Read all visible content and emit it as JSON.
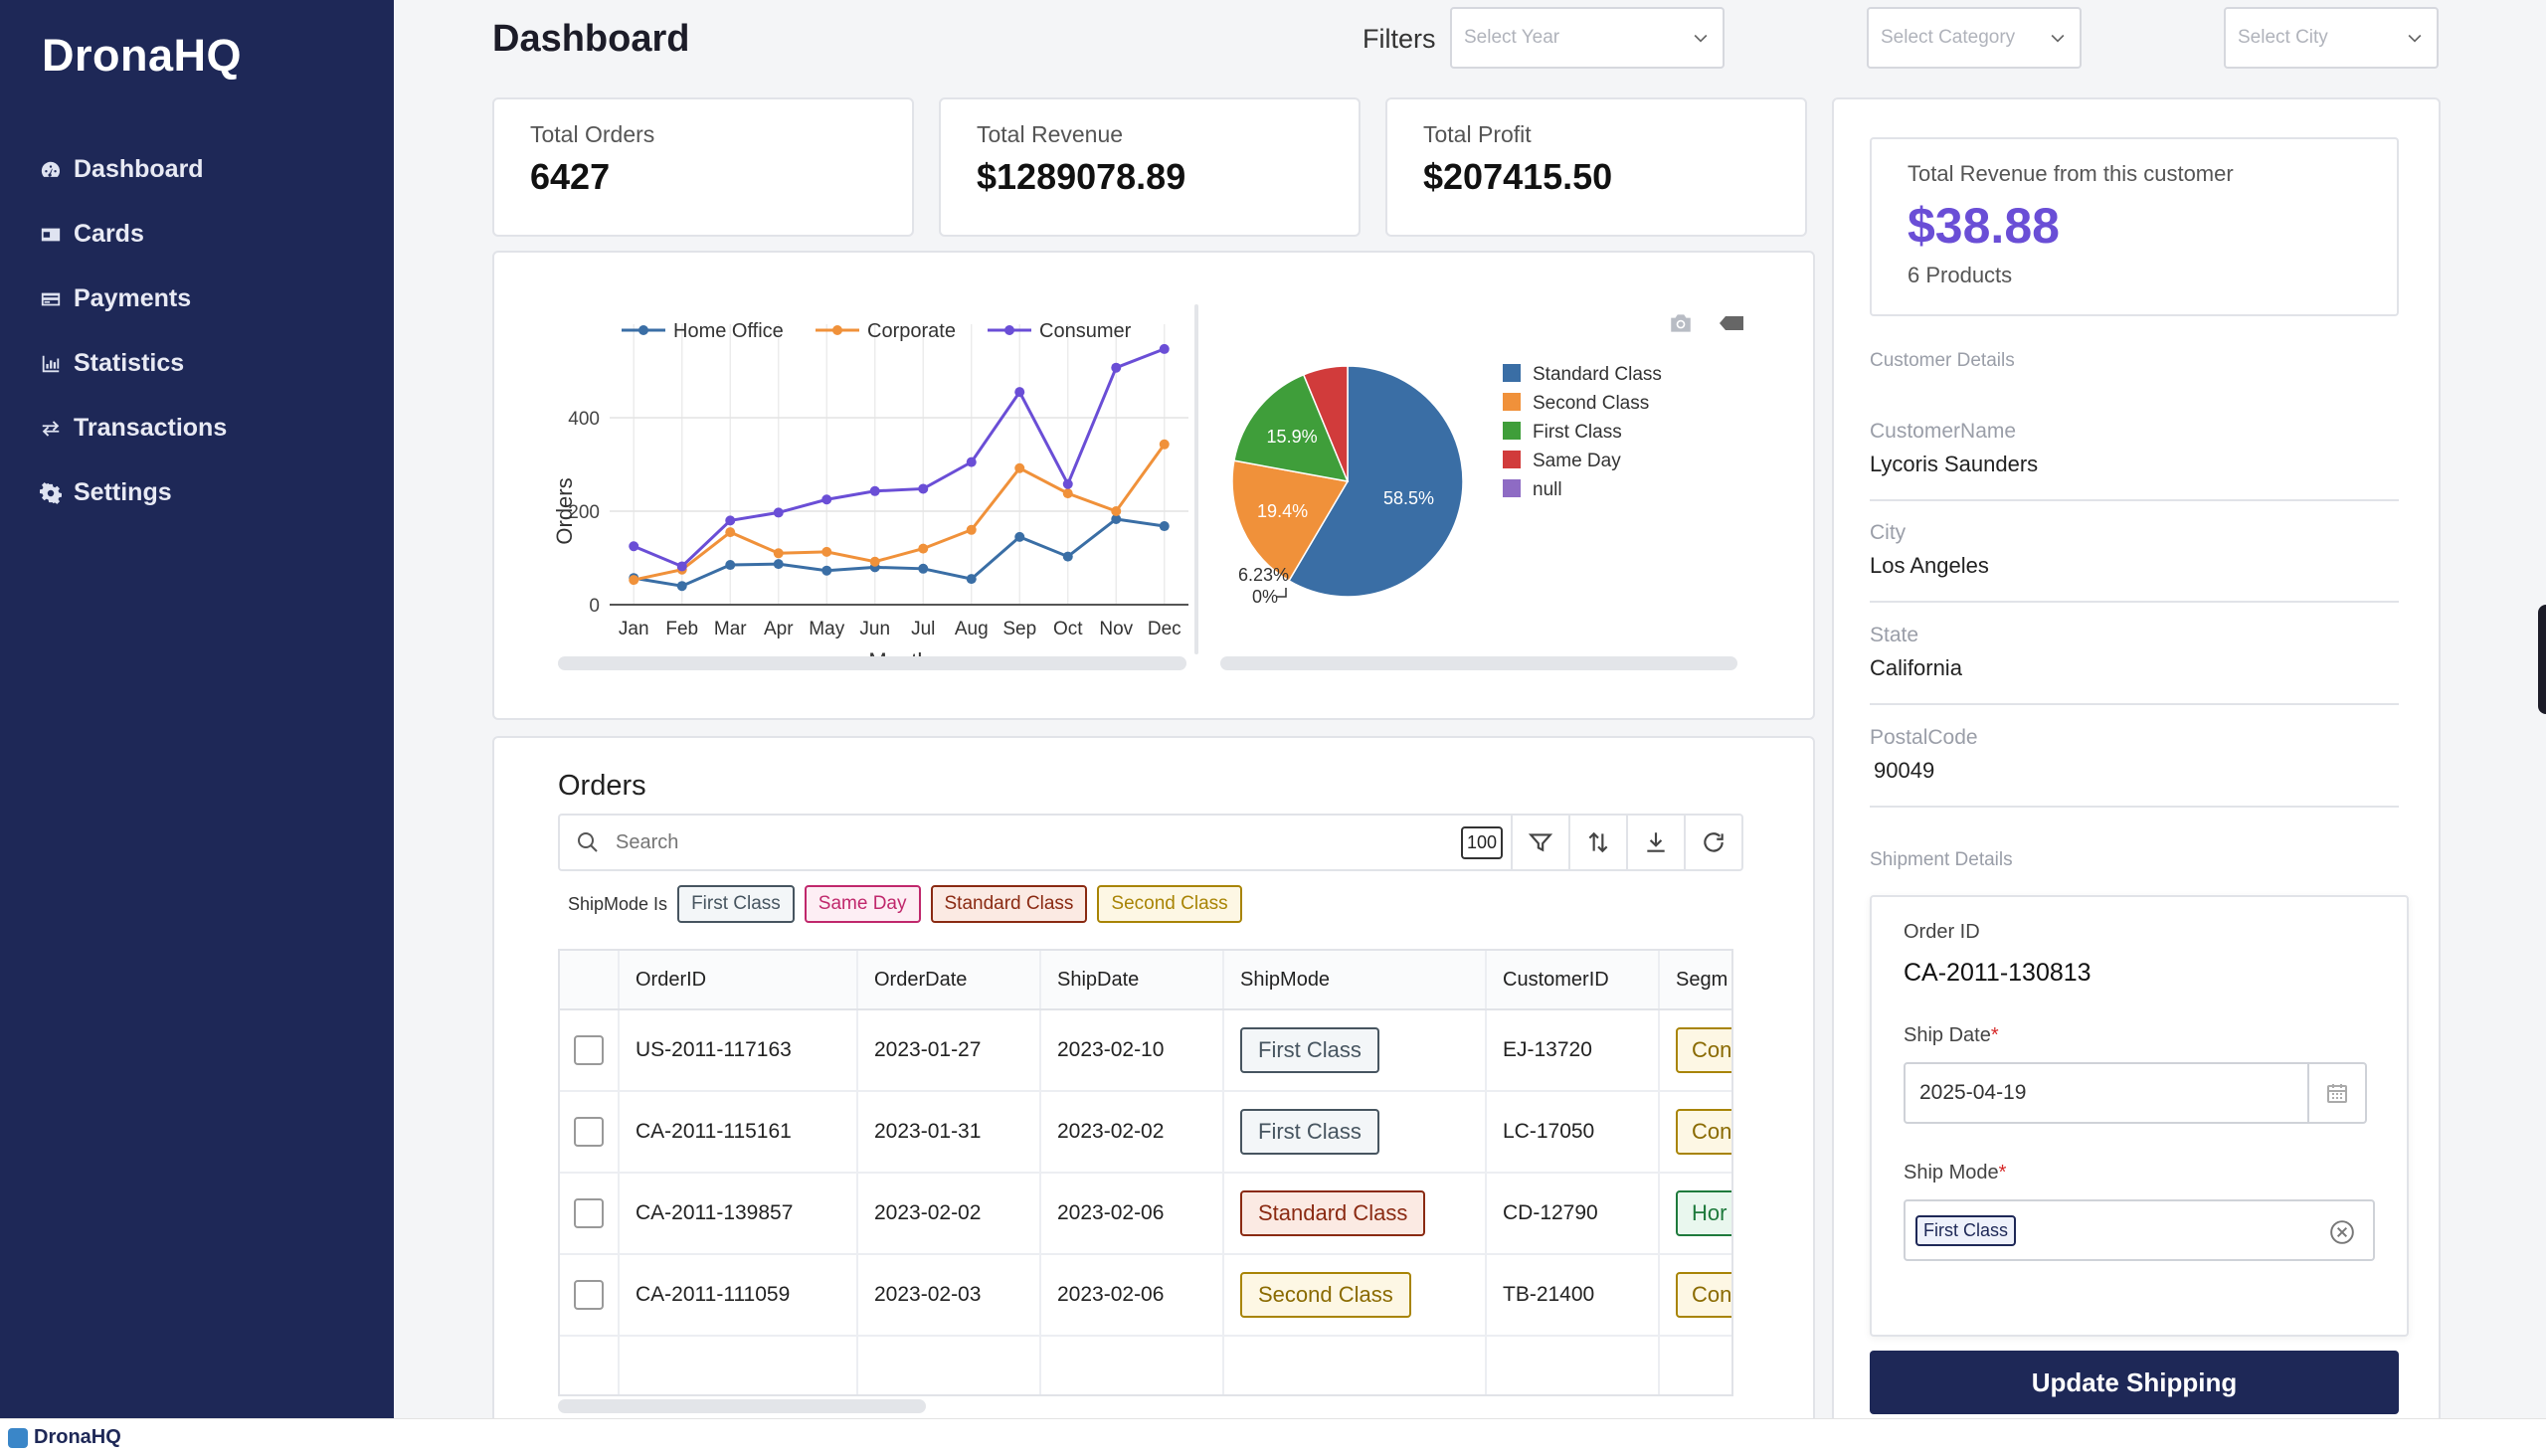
{
  "brand": "DronaHQ",
  "sidebar": {
    "items": [
      {
        "label": "Dashboard",
        "icon": "dashboard-gauge-icon"
      },
      {
        "label": "Cards",
        "icon": "id-card-icon"
      },
      {
        "label": "Payments",
        "icon": "credit-card-icon"
      },
      {
        "label": "Statistics",
        "icon": "bar-chart-icon"
      },
      {
        "label": "Transactions",
        "icon": "swap-arrows-icon"
      },
      {
        "label": "Settings",
        "icon": "gear-icon"
      }
    ]
  },
  "header": {
    "title": "Dashboard",
    "filters_label": "Filters",
    "year_placeholder": "Select Year",
    "category_placeholder": "Select Category",
    "city_placeholder": "Select City"
  },
  "stats": [
    {
      "label": "Total Orders",
      "value": "6427"
    },
    {
      "label": "Total Revenue",
      "value": "$1289078.89"
    },
    {
      "label": "Total Profit",
      "value": "$207415.50"
    }
  ],
  "chart_data": [
    {
      "type": "line",
      "title": "",
      "xlabel": "Month",
      "ylabel": "Orders",
      "categories": [
        "Jan",
        "Feb",
        "Mar",
        "Apr",
        "May",
        "Jun",
        "Jul",
        "Aug",
        "Sep",
        "Oct",
        "Nov",
        "Dec"
      ],
      "yticks": [
        0,
        200,
        400
      ],
      "ylim": [
        0,
        600
      ],
      "legend": "top",
      "grid": true,
      "series": [
        {
          "name": "Home Office",
          "color": "#3a6ea5",
          "values": [
            57,
            40,
            85,
            87,
            73,
            80,
            77,
            55,
            145,
            103,
            183,
            168
          ]
        },
        {
          "name": "Corporate",
          "color": "#f0913a",
          "values": [
            53,
            75,
            155,
            110,
            113,
            92,
            120,
            160,
            292,
            238,
            200,
            343
          ]
        },
        {
          "name": "Consumer",
          "color": "#6a4ed6",
          "values": [
            125,
            82,
            180,
            197,
            225,
            243,
            248,
            305,
            455,
            258,
            507,
            547
          ]
        }
      ]
    },
    {
      "type": "pie",
      "legend": "right",
      "slices": [
        {
          "label": "Standard Class",
          "value": 58.5,
          "text": "58.5%",
          "color": "#3a6ea5"
        },
        {
          "label": "Second Class",
          "value": 19.4,
          "text": "19.4%",
          "color": "#f0913a"
        },
        {
          "label": "First Class",
          "value": 15.9,
          "text": "15.9%",
          "color": "#3f9e3a"
        },
        {
          "label": "Same Day",
          "value": 6.23,
          "text": "6.23%",
          "color": "#d13b3b"
        },
        {
          "label": "null",
          "value": 0,
          "text": "0%",
          "color": "#8e6bc4"
        }
      ]
    }
  ],
  "orders": {
    "title": "Orders",
    "search_placeholder": "Search",
    "rows_count": "100",
    "filter_label": "ShipMode Is",
    "chips": [
      {
        "label": "First Class",
        "color": "#475560",
        "bg": "#f3f6f8"
      },
      {
        "label": "Same Day",
        "color": "#c0286c",
        "bg": "#fdeef4"
      },
      {
        "label": "Standard Class",
        "color": "#8a2a12",
        "bg": "#fbeae3"
      },
      {
        "label": "Second Class",
        "color": "#a88405",
        "bg": "#fdf7e4"
      }
    ],
    "columns": [
      "OrderID",
      "OrderDate",
      "ShipDate",
      "ShipMode",
      "CustomerID",
      "Segm"
    ],
    "rows": [
      {
        "order_id": "US-2011-117163",
        "order_date": "2023-01-27",
        "ship_date": "2023-02-10",
        "ship_mode": "First Class",
        "mode_class": "first",
        "customer_id": "EJ-13720",
        "segment": "Con",
        "seg_class": "con"
      },
      {
        "order_id": "CA-2011-115161",
        "order_date": "2023-01-31",
        "ship_date": "2023-02-02",
        "ship_mode": "First Class",
        "mode_class": "first",
        "customer_id": "LC-17050",
        "segment": "Con",
        "seg_class": "con"
      },
      {
        "order_id": "CA-2011-139857",
        "order_date": "2023-02-02",
        "ship_date": "2023-02-06",
        "ship_mode": "Standard Class",
        "mode_class": "standard",
        "customer_id": "CD-12790",
        "segment": "Hor",
        "seg_class": "hom"
      },
      {
        "order_id": "CA-2011-111059",
        "order_date": "2023-02-03",
        "ship_date": "2023-02-06",
        "ship_mode": "Second Class",
        "mode_class": "second",
        "customer_id": "TB-21400",
        "segment": "Con",
        "seg_class": "con"
      }
    ]
  },
  "customer": {
    "revenue_label": "Total Revenue from this customer",
    "revenue_value": "$38.88",
    "products": "6 Products",
    "details_title": "Customer Details",
    "fields": [
      {
        "label": "CustomerName",
        "value": "Lycoris Saunders"
      },
      {
        "label": "City",
        "value": "Los Angeles"
      },
      {
        "label": "State",
        "value": "California"
      },
      {
        "label": "PostalCode",
        "value": "90049"
      }
    ],
    "shipment_title": "Shipment Details",
    "order_id_label": "Order ID",
    "order_id": "CA-2011-130813",
    "ship_date_label": "Ship Date",
    "ship_date": "2025-04-19",
    "ship_mode_label": "Ship Mode",
    "ship_mode": "First Class",
    "required_mark": "*",
    "update_button": "Update Shipping"
  },
  "footer": {
    "brand": "DronaHQ"
  }
}
